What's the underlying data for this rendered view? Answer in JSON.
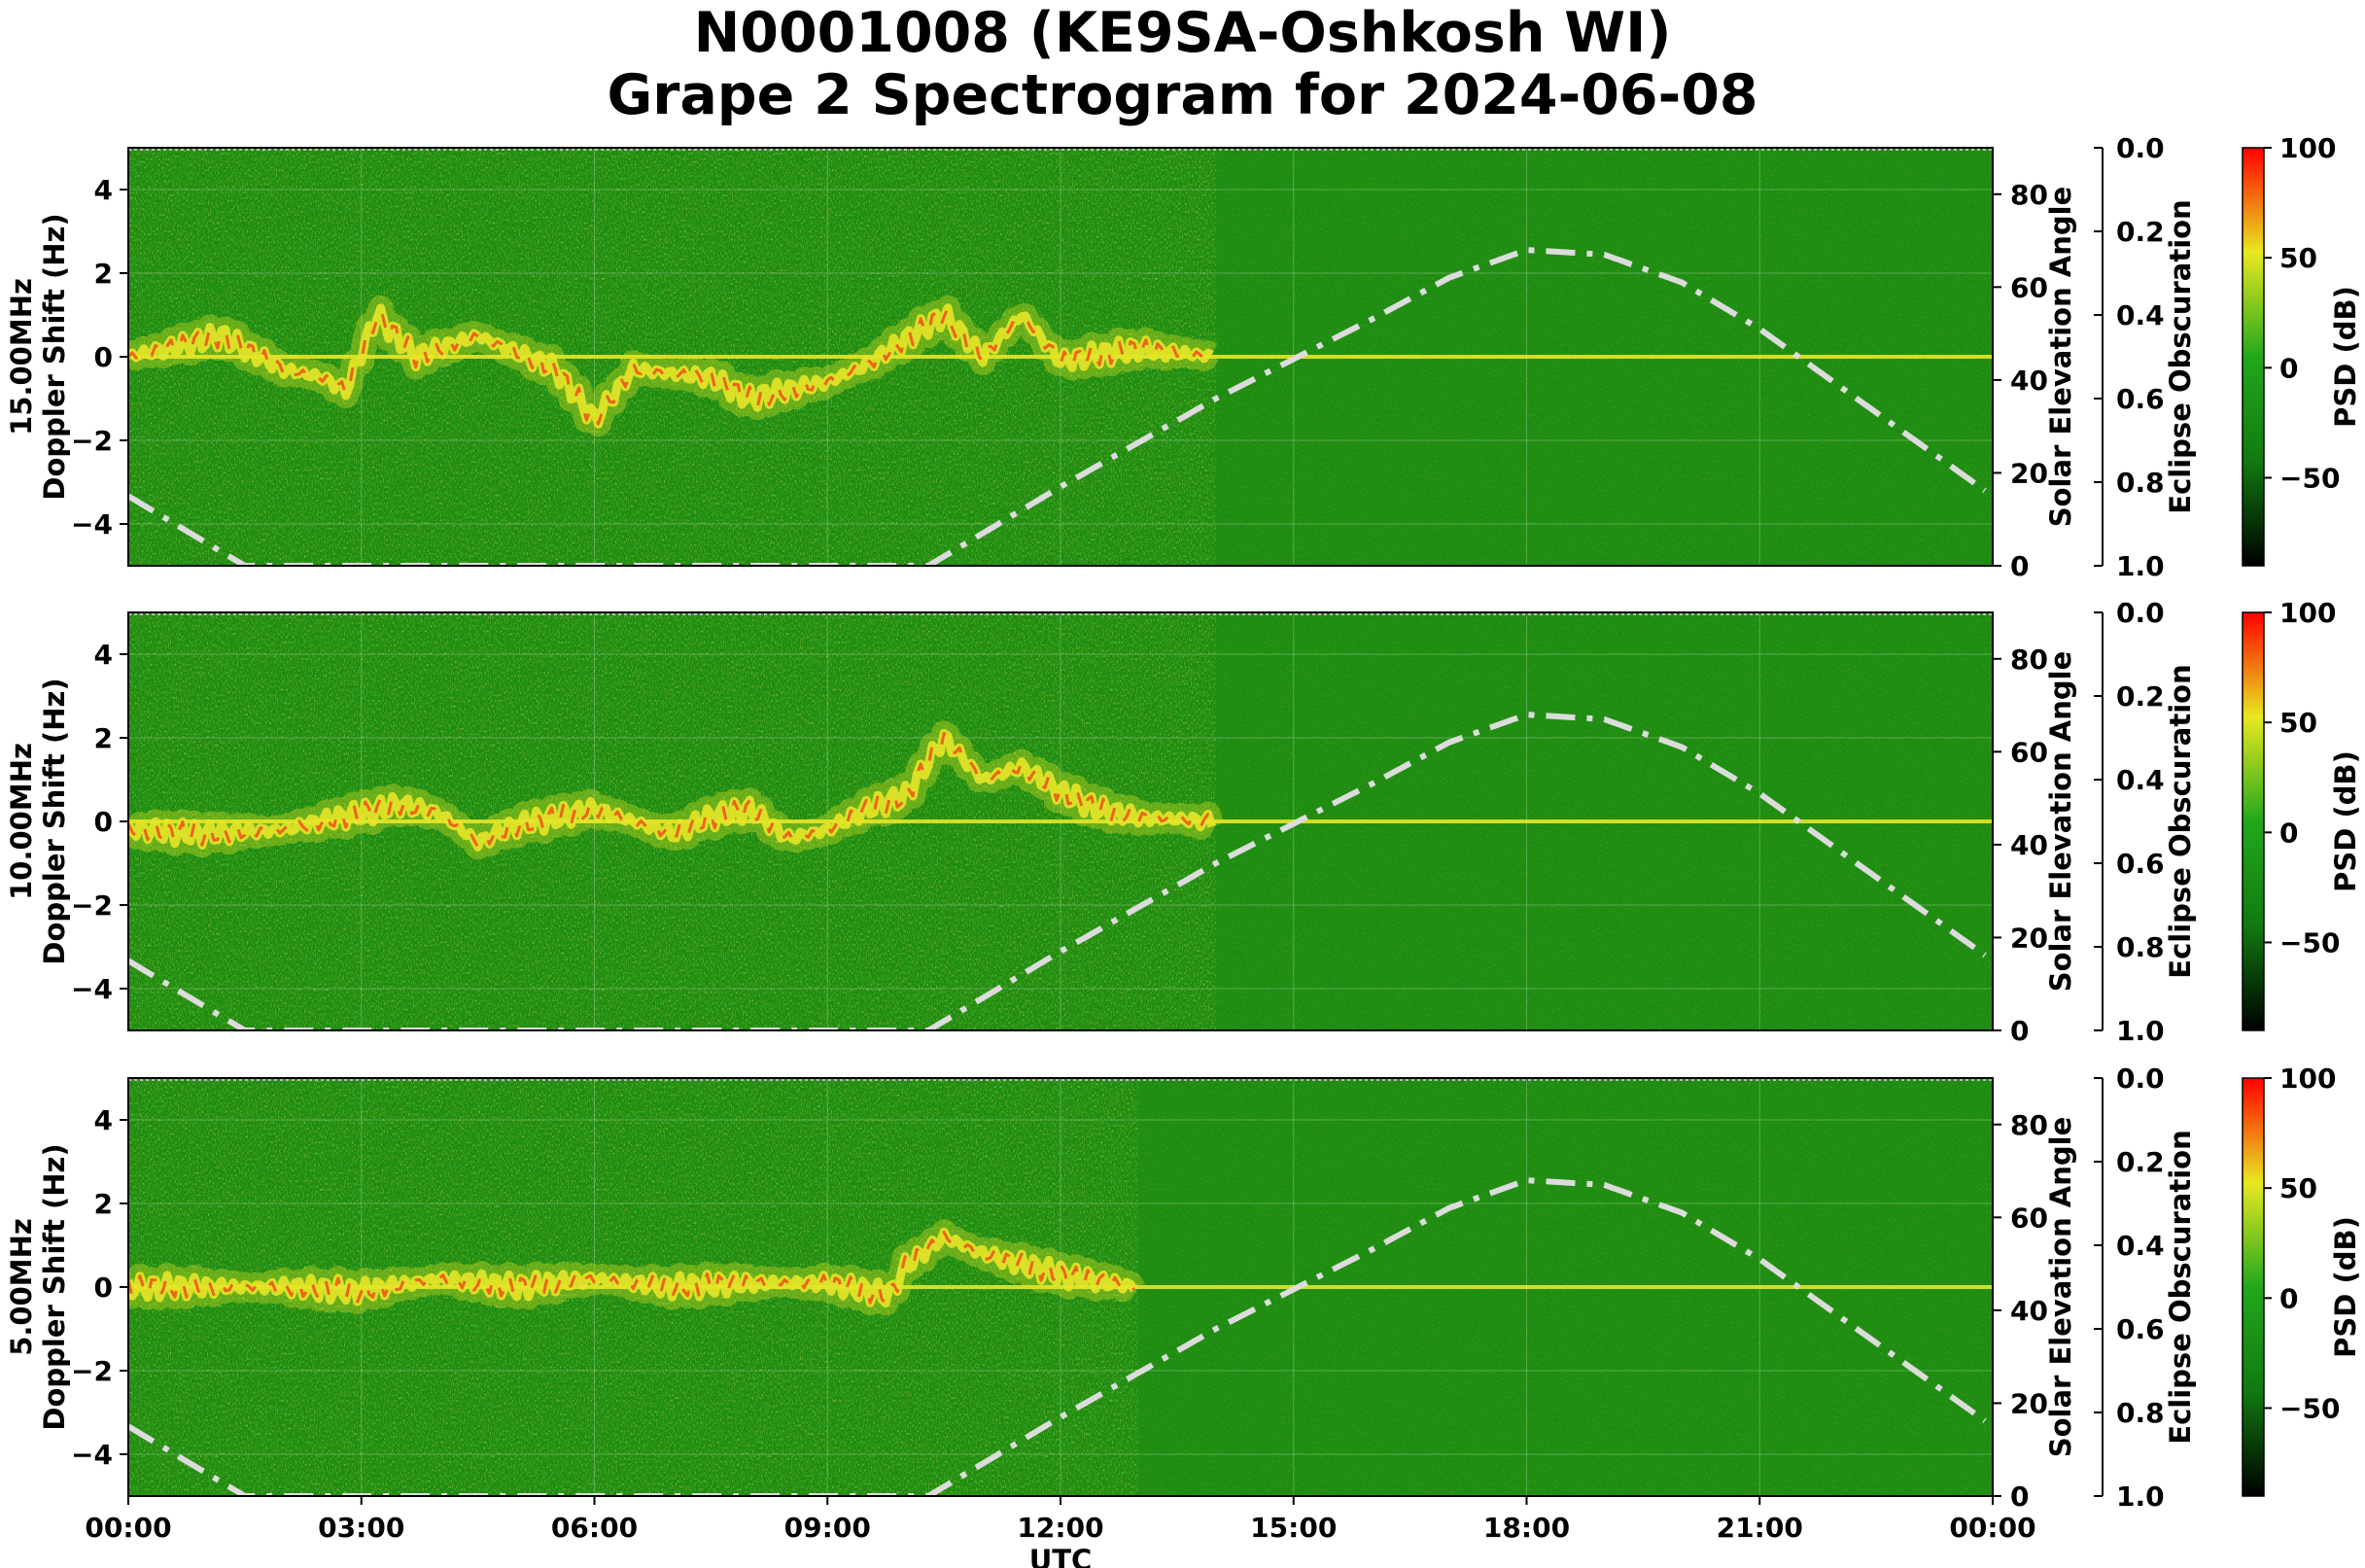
{
  "title_line1": "N0001008 (KE9SA-Oshkosh WI)",
  "title_line2": "Grape 2 Spectrogram for 2024-06-08",
  "x_label": "UTC",
  "x_ticks": [
    "00:00",
    "03:00",
    "06:00",
    "09:00",
    "12:00",
    "15:00",
    "18:00",
    "21:00",
    "00:00"
  ],
  "colors": {
    "background_green": "#1e8c12",
    "signal_yellow": "#e6e628",
    "signal_red": "#f03c14",
    "solar_curve": "#dcdcdc"
  },
  "colorbar": {
    "label": "PSD (dB)",
    "ticks": [
      "100",
      "50",
      "0",
      "−50"
    ],
    "range": [
      -90,
      100
    ],
    "colormap": [
      "#000000",
      "#107a10",
      "#22a81c",
      "#e8e820",
      "#ff0000"
    ]
  },
  "chart_data": [
    {
      "type": "heatmap",
      "panel_label": "15.00MHz",
      "ylabel": "Doppler Shift (Hz)",
      "ylim": [
        -5,
        5
      ],
      "y_ticks": [
        "4",
        "2",
        "0",
        "−2",
        "−4"
      ],
      "right_ylabel": "Solar Elevation Angle",
      "right_ylim": [
        0,
        90
      ],
      "right_ticks": [
        "80",
        "60",
        "40",
        "20",
        "0"
      ],
      "eclipse_label": "Eclipse Obscuration",
      "eclipse_ylim": [
        0.0,
        1.0
      ],
      "eclipse_ticks": [
        "0.0",
        "0.2",
        "0.4",
        "0.6",
        "0.8",
        "1.0"
      ],
      "x_range_hours": [
        0,
        24
      ],
      "solar_elevation": {
        "x_hours": [
          0,
          1.5,
          10.3,
          12,
          14,
          16,
          17,
          18,
          19,
          20,
          21,
          22,
          23,
          24
        ],
        "y_deg": [
          15,
          0,
          0,
          17,
          36,
          53,
          62,
          68,
          67,
          61,
          51,
          39,
          27,
          15
        ]
      },
      "doppler_trace": {
        "x_hours": [
          0,
          1.2,
          1.5,
          2,
          2.5,
          2.8,
          3.2,
          3.4,
          3.7,
          4.5,
          5.5,
          6,
          6.5,
          7.5,
          8,
          9,
          9.5,
          10,
          10.5,
          11,
          11.5,
          12,
          13,
          14,
          24
        ],
        "y_hz": [
          0,
          0.5,
          0.2,
          -0.3,
          -0.5,
          -0.8,
          1.0,
          0.6,
          0,
          0.5,
          -0.3,
          -1.5,
          -0.3,
          -0.5,
          -1.0,
          -0.6,
          -0.2,
          0.4,
          1.0,
          0,
          1.0,
          -0.1,
          0.2,
          0,
          0
        ]
      }
    },
    {
      "type": "heatmap",
      "panel_label": "10.00MHz",
      "ylabel": "Doppler Shift (Hz)",
      "ylim": [
        -5,
        5
      ],
      "y_ticks": [
        "4",
        "2",
        "0",
        "−2",
        "−4"
      ],
      "right_ylabel": "Solar Elevation Angle",
      "right_ylim": [
        0,
        90
      ],
      "right_ticks": [
        "80",
        "60",
        "40",
        "20",
        "0"
      ],
      "eclipse_label": "Eclipse Obscuration",
      "eclipse_ylim": [
        0.0,
        1.0
      ],
      "eclipse_ticks": [
        "0.0",
        "0.2",
        "0.4",
        "0.6",
        "0.8",
        "1.0"
      ],
      "x_range_hours": [
        0,
        24
      ],
      "solar_elevation": {
        "x_hours": [
          0,
          1.5,
          10.3,
          12,
          14,
          16,
          17,
          18,
          19,
          20,
          21,
          22,
          23,
          24
        ],
        "y_deg": [
          15,
          0,
          0,
          17,
          36,
          53,
          62,
          68,
          67,
          61,
          51,
          39,
          27,
          15
        ]
      },
      "doppler_trace": {
        "x_hours": [
          0,
          1,
          2,
          3,
          3.5,
          4,
          4.5,
          5,
          6,
          7,
          7.5,
          8,
          8.5,
          9,
          9.5,
          10,
          10.5,
          11,
          11.5,
          12,
          12.5,
          13,
          14,
          24
        ],
        "y_hz": [
          -0.2,
          -0.3,
          -0.2,
          0.2,
          0.4,
          0.2,
          -0.5,
          -0.1,
          0.3,
          -0.3,
          0.1,
          0.3,
          -0.4,
          -0.2,
          0.3,
          0.6,
          2.0,
          1.0,
          1.3,
          0.7,
          0.3,
          0.1,
          0,
          0
        ]
      }
    },
    {
      "type": "heatmap",
      "panel_label": "5.00MHz",
      "ylabel": "Doppler Shift (Hz)",
      "ylim": [
        -5,
        5
      ],
      "y_ticks": [
        "4",
        "2",
        "0",
        "−2",
        "−4"
      ],
      "right_ylabel": "Solar Elevation Angle",
      "right_ylim": [
        0,
        90
      ],
      "right_ticks": [
        "80",
        "60",
        "40",
        "20",
        "0"
      ],
      "eclipse_label": "Eclipse Obscuration",
      "eclipse_ylim": [
        0.0,
        1.0
      ],
      "eclipse_ticks": [
        "0.0",
        "0.2",
        "0.4",
        "0.6",
        "0.8",
        "1.0"
      ],
      "x_range_hours": [
        0,
        24
      ],
      "solar_elevation": {
        "x_hours": [
          0,
          1.5,
          10.3,
          12,
          14,
          16,
          17,
          18,
          19,
          20,
          21,
          22,
          23,
          24
        ],
        "y_deg": [
          15,
          0,
          0,
          17,
          36,
          53,
          62,
          68,
          67,
          61,
          51,
          39,
          27,
          15
        ]
      },
      "doppler_trace": {
        "x_hours": [
          0,
          2,
          3,
          4,
          5,
          6,
          7,
          8,
          9,
          9.8,
          10,
          10.5,
          11,
          12,
          13,
          24
        ],
        "y_hz": [
          0,
          0,
          -0.1,
          0.2,
          0,
          0.2,
          0,
          0.1,
          0.1,
          -0.2,
          0.5,
          1.2,
          0.8,
          0.3,
          0,
          0
        ]
      }
    }
  ]
}
